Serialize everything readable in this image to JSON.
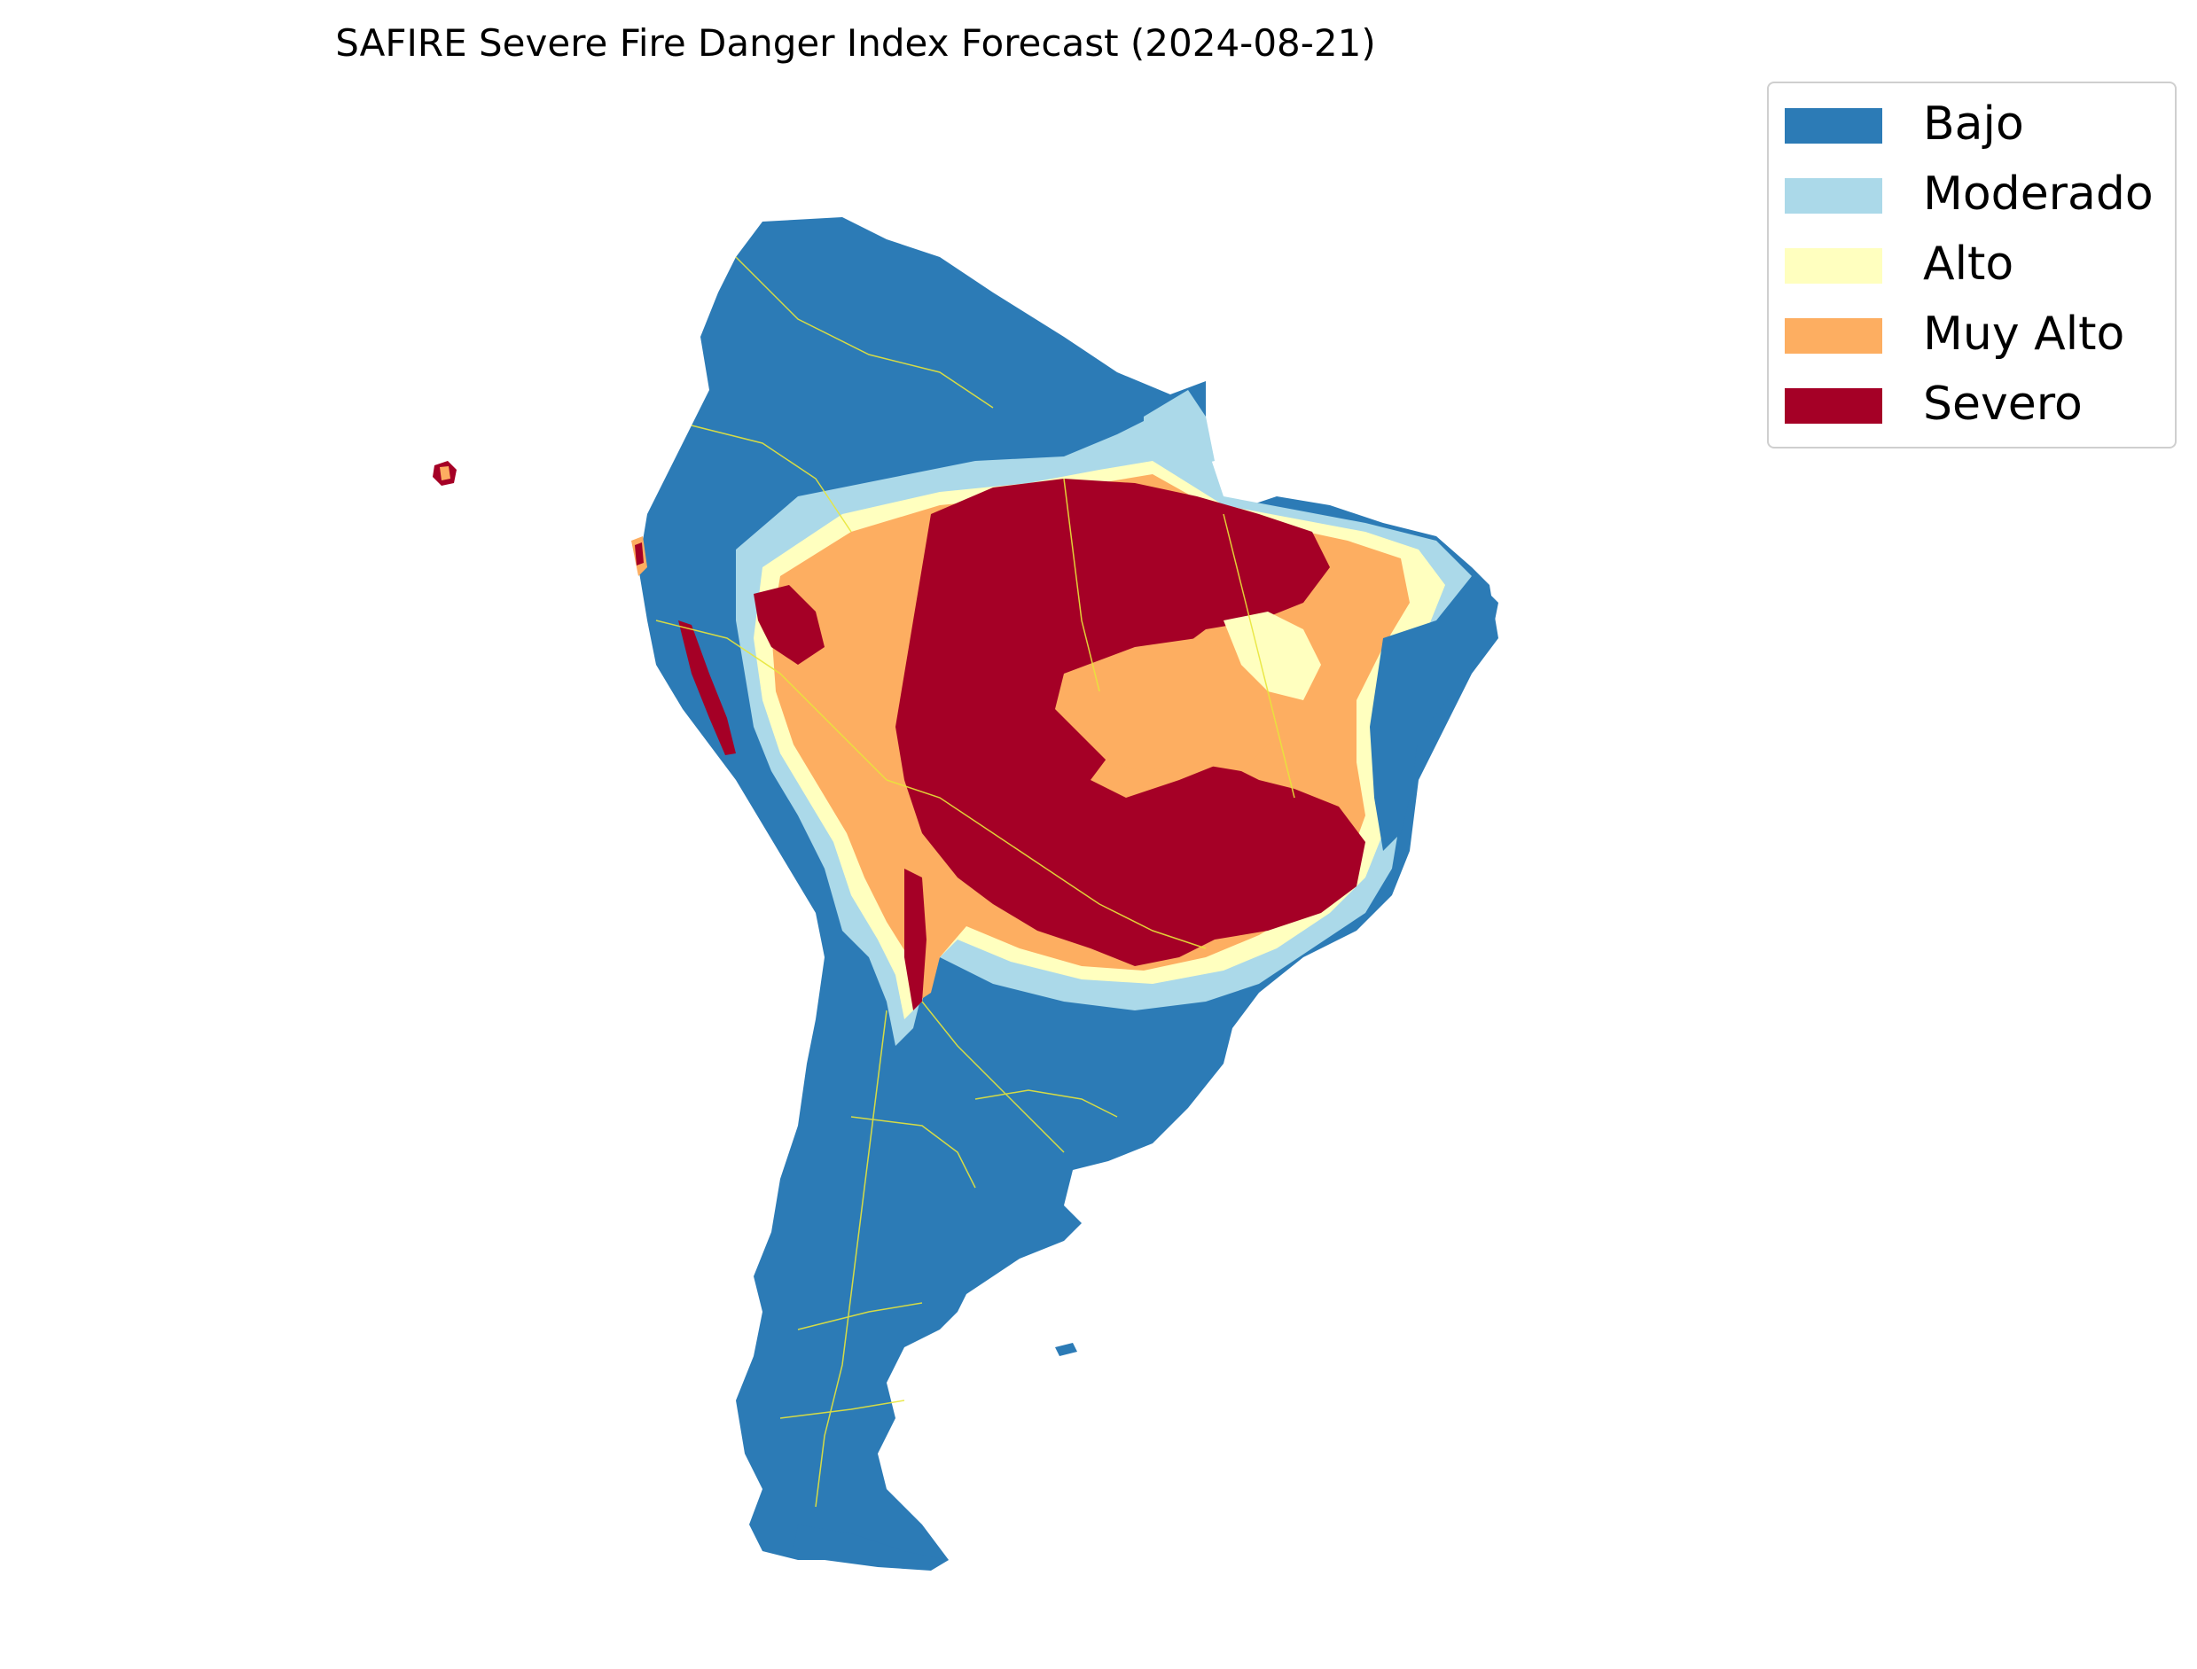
{
  "title": "SAFIRE Severe Fire Danger Index Forecast (2024-08-21)",
  "colors": {
    "bajo": "#2c7bb6",
    "moderado": "#abd9e9",
    "alto": "#ffffbf",
    "muy_alto": "#fdae61",
    "severo": "#a50026",
    "borders": "#e8e63a"
  },
  "legend": {
    "items": [
      {
        "label": "Bajo",
        "color": "#2c7bb6"
      },
      {
        "label": "Moderado",
        "color": "#abd9e9"
      },
      {
        "label": "Alto",
        "color": "#ffffbf"
      },
      {
        "label": "Muy Alto",
        "color": "#fdae61"
      },
      {
        "label": "Severo",
        "color": "#a50026"
      }
    ]
  }
}
